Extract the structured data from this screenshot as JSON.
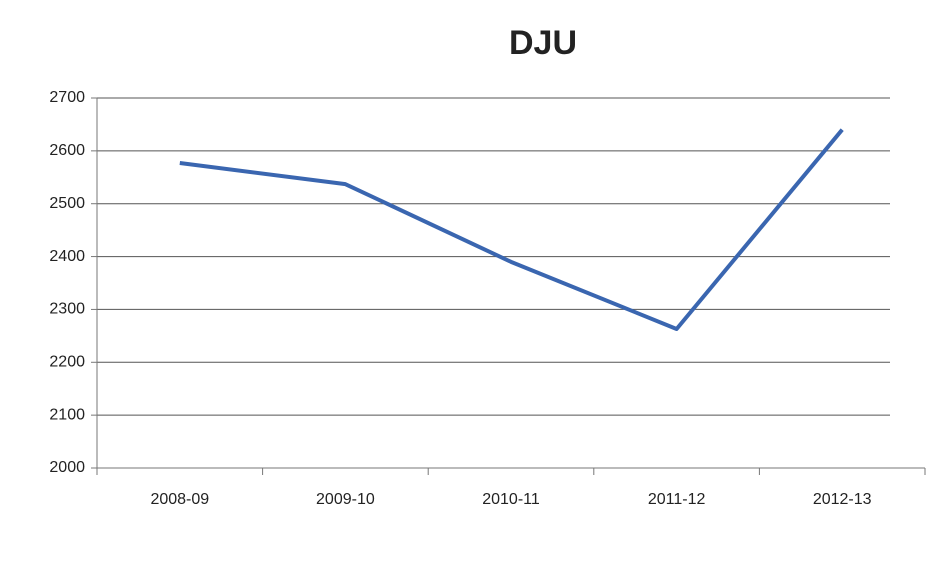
{
  "chart_data": {
    "type": "line",
    "title": "DJU",
    "categories": [
      "2008-09",
      "2009-10",
      "2010-11",
      "2011-12",
      "2012-13"
    ],
    "series": [
      {
        "name": "DJU",
        "color": "#3a66b0",
        "values": [
          2577,
          2537,
          2390,
          2263,
          2640
        ]
      }
    ],
    "ylim": [
      2000,
      2700
    ],
    "yticks": [
      2000,
      2100,
      2200,
      2300,
      2400,
      2500,
      2600,
      2700
    ],
    "grid": true
  }
}
